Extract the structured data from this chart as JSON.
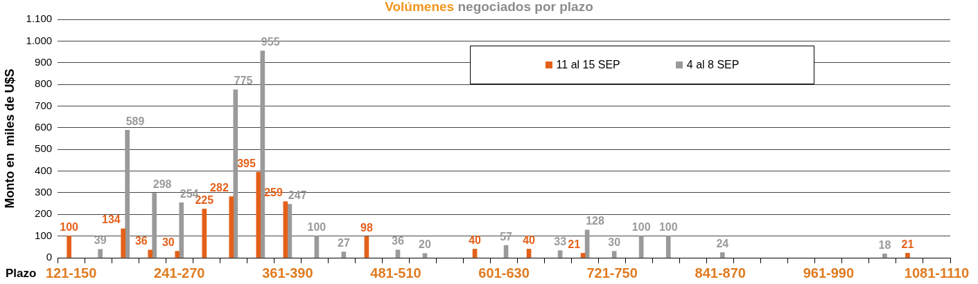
{
  "chart_data": {
    "type": "bar",
    "title": "Volúmenes negociados por plazo",
    "xlabel": "Plazo",
    "ylabel": "Monto en  miles de U$S",
    "categories": [
      "121-150",
      null,
      null,
      null,
      "241-270",
      null,
      null,
      null,
      "361-390",
      null,
      null,
      null,
      "481-510",
      null,
      null,
      null,
      "601-630",
      null,
      null,
      null,
      "721-750",
      null,
      null,
      null,
      "841-870",
      null,
      null,
      null,
      "961-990",
      null,
      null,
      null,
      "1081-1110"
    ],
    "series": [
      {
        "name": "11 al 15 SEP",
        "color": "#e4601a",
        "values": [
          100,
          null,
          134,
          36,
          30,
          225,
          282,
          395,
          259,
          null,
          null,
          98,
          null,
          null,
          null,
          40,
          null,
          40,
          null,
          21,
          null,
          null,
          null,
          null,
          null,
          null,
          null,
          null,
          null,
          null,
          null,
          21,
          null
        ]
      },
      {
        "name": "4 al 8 SEP",
        "color": "#9a9a9a",
        "values": [
          null,
          39,
          589,
          298,
          254,
          null,
          775,
          955,
          247,
          100,
          27,
          null,
          36,
          20,
          null,
          null,
          57,
          null,
          33,
          128,
          30,
          100,
          100,
          null,
          24,
          null,
          null,
          null,
          null,
          null,
          18,
          null,
          null
        ]
      }
    ],
    "ylim": [
      0,
      1100
    ],
    "yticks": [
      0,
      100,
      200,
      300,
      400,
      500,
      600,
      700,
      800,
      900,
      {
        "value": 1000,
        "label": "1.000"
      },
      {
        "value": 1100,
        "label": "1.100"
      }
    ],
    "grid": "y",
    "legend": "top right",
    "data_labels": true
  }
}
